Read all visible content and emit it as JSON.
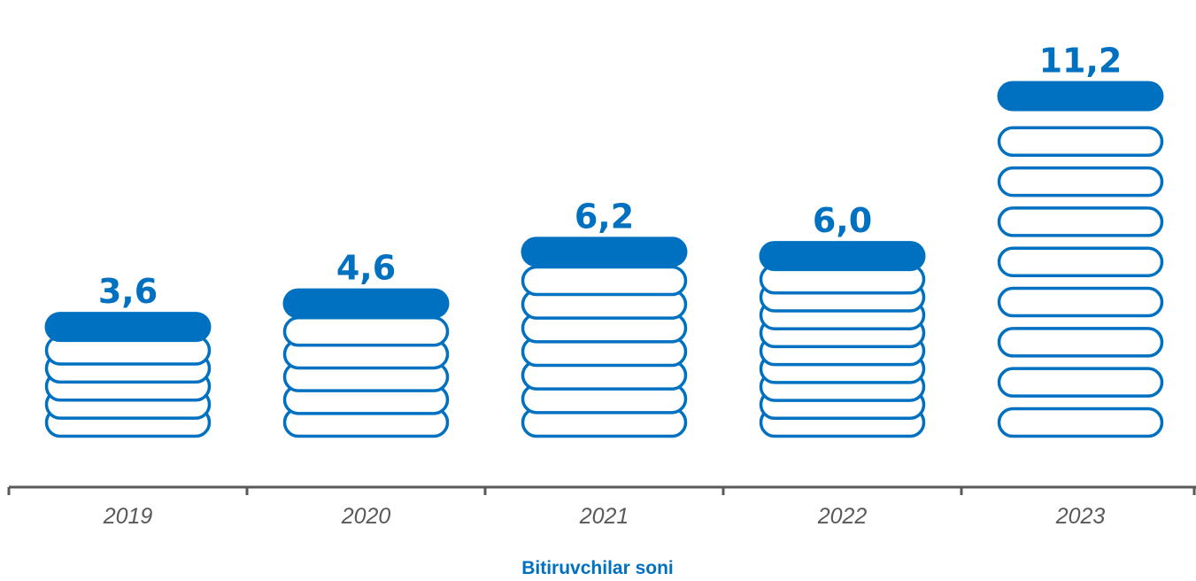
{
  "chart_data": {
    "type": "bar",
    "categories": [
      "2019",
      "2020",
      "2021",
      "2022",
      "2023"
    ],
    "values": [
      3.6,
      4.6,
      6.2,
      6.0,
      11.2
    ],
    "value_labels": [
      "3,6",
      "4,6",
      "6,2",
      "6,0",
      "11,2"
    ],
    "stack_counts": [
      5,
      5,
      7,
      9,
      8
    ],
    "xlabel": "Bitiruvchilar soni",
    "ylabel": "",
    "grid": false,
    "legend": "none"
  },
  "colors": {
    "accent": "#0070C0",
    "axis": "#595959",
    "tick_text": "#595959"
  }
}
